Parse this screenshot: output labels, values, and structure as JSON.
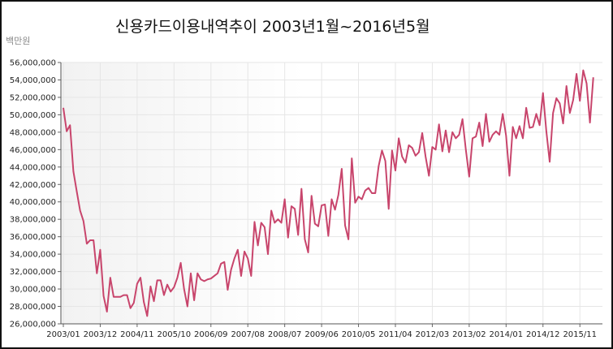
{
  "chart_data": {
    "type": "line",
    "title": "신용카드이용내역추이  2003년1월~2016년5월",
    "unit_label": "백만원",
    "ylim": [
      26000000,
      56000000
    ],
    "y_ticks": [
      "26,000,000",
      "28,000,000",
      "30,000,000",
      "32,000,000",
      "34,000,000",
      "36,000,000",
      "38,000,000",
      "40,000,000",
      "42,000,000",
      "44,000,000",
      "46,000,000",
      "48,000,000",
      "50,000,000",
      "52,000,000",
      "54,000,000",
      "56,000,000"
    ],
    "x_ticks": [
      "2003/01",
      "2003/12",
      "2004/11",
      "2005/10",
      "2006/09",
      "2007/08",
      "2008/07",
      "2009/06",
      "2010/05",
      "2011/04",
      "2012/03",
      "2013/02",
      "2014/01",
      "2014/12",
      "2015/11"
    ],
    "grid": true,
    "x_range": [
      "2003/01",
      "2016/05"
    ],
    "line_color": "#c8456c",
    "series": [
      {
        "values": [
          50800000,
          48100000,
          48800000,
          43500000,
          41200000,
          39000000,
          37800000,
          35200000,
          35600000,
          35600000,
          31800000,
          34500000,
          29200000,
          27400000,
          31300000,
          29100000,
          29100000,
          29100000,
          29300000,
          29300000,
          27800000,
          28400000,
          30600000,
          31300000,
          28500000,
          26900000,
          30300000,
          28600000,
          31000000,
          31000000,
          29300000,
          30500000,
          29700000,
          30200000,
          31300000,
          33000000,
          30000000,
          28000000,
          31800000,
          28700000,
          31800000,
          31100000,
          30900000,
          31100000,
          31200000,
          31500000,
          31800000,
          32900000,
          33100000,
          29900000,
          32200000,
          33500000,
          34500000,
          31500000,
          34300000,
          33500000,
          31500000,
          37700000,
          35000000,
          37600000,
          37100000,
          34000000,
          39000000,
          37600000,
          38000000,
          37600000,
          40300000,
          35900000,
          39500000,
          39200000,
          36200000,
          41500000,
          35700000,
          34200000,
          40700000,
          37500000,
          37200000,
          39600000,
          39700000,
          36100000,
          40300000,
          39100000,
          40800000,
          43800000,
          37300000,
          35700000,
          45000000,
          39900000,
          40600000,
          40300000,
          41300000,
          41600000,
          41000000,
          41000000,
          44100000,
          45900000,
          44700000,
          39200000,
          45900000,
          43600000,
          47300000,
          45200000,
          44500000,
          46500000,
          46200000,
          45300000,
          45700000,
          47900000,
          45200000,
          43000000,
          46300000,
          46000000,
          48900000,
          45800000,
          48200000,
          45700000,
          48000000,
          47300000,
          47700000,
          49500000,
          46000000,
          42900000,
          47300000,
          47500000,
          49100000,
          46400000,
          50100000,
          46900000,
          47700000,
          48100000,
          47700000,
          50100000,
          47600000,
          43000000,
          48600000,
          47300000,
          48700000,
          47300000,
          50800000,
          48500000,
          48600000,
          50100000,
          48800000,
          52500000,
          48100000,
          44600000,
          50200000,
          51900000,
          51300000,
          49000000,
          53300000,
          50200000,
          51700000,
          54700000,
          51600000,
          55100000,
          53600000,
          49100000,
          54300000
        ]
      }
    ]
  }
}
